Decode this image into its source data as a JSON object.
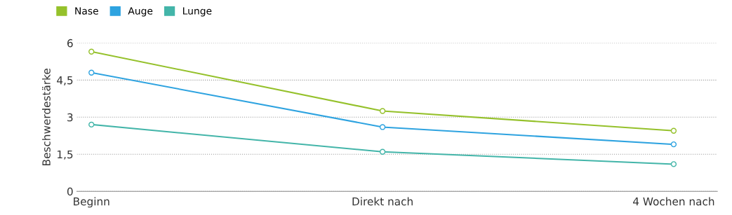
{
  "chart_data": {
    "type": "line",
    "ylabel": "Beschwerdestärke",
    "categories": [
      "Beginn",
      "Direkt nach",
      "4 Wochen nach"
    ],
    "series": [
      {
        "name": "Nase",
        "color": "#95c12b",
        "values": [
          5.65,
          3.25,
          2.45
        ]
      },
      {
        "name": "Auge",
        "color": "#2ea3e0",
        "values": [
          4.8,
          2.6,
          1.9
        ]
      },
      {
        "name": "Lunge",
        "color": "#43b5a9",
        "values": [
          2.7,
          1.6,
          1.1
        ]
      }
    ],
    "ylim": [
      0,
      6
    ],
    "yticks": [
      0,
      {
        "value": 1.5,
        "label": "1,5"
      },
      3,
      {
        "value": 4.5,
        "label": "4,5"
      },
      6
    ],
    "grid": "y",
    "legend": "top left",
    "marker": "circle",
    "line_style": "solid"
  }
}
